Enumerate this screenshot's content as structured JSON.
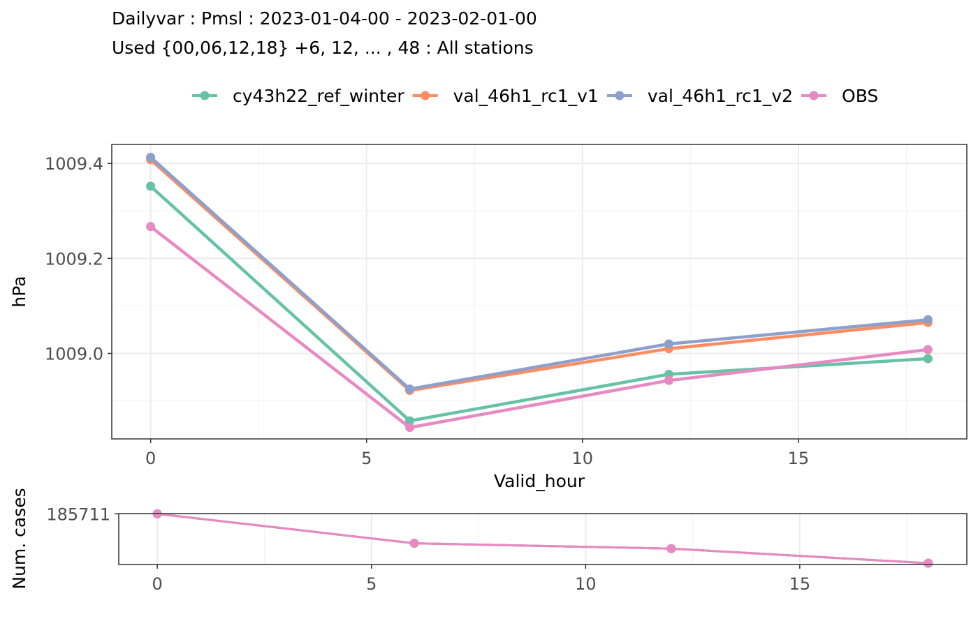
{
  "title_line1": "Dailyvar : Pmsl : 2023-01-04-00 - 2023-02-01-00",
  "title_line2": "Used {00,06,12,18} +6, 12, ... , 48 : All stations",
  "chart_data": [
    {
      "type": "line",
      "panel": "main",
      "xlabel": "Valid_hour",
      "ylabel": "hPa",
      "xlim": [
        -0.9,
        18.9
      ],
      "ylim": [
        1008.82,
        1009.44
      ],
      "x_ticks": [
        0,
        5,
        10,
        15
      ],
      "x_tick_labels": [
        "0",
        "5",
        "10",
        "15"
      ],
      "y_ticks": [
        1009.0,
        1009.2,
        1009.4
      ],
      "y_tick_labels": [
        "1009.0",
        "1009.2",
        "1009.4"
      ],
      "grid": true,
      "legend_position": "top",
      "x": [
        0,
        6,
        12,
        18
      ],
      "series": [
        {
          "name": "cy43h22_ref_winter",
          "color": "#66c2a5",
          "values": [
            1009.352,
            1008.858,
            1008.956,
            1008.989
          ]
        },
        {
          "name": "val_46h1_rc1_v1",
          "color": "#fc8d62",
          "values": [
            1009.408,
            1008.922,
            1009.01,
            1009.065
          ]
        },
        {
          "name": "val_46h1_rc1_v2",
          "color": "#8da0cb",
          "values": [
            1009.413,
            1008.925,
            1009.02,
            1009.071
          ]
        },
        {
          "name": "OBS",
          "color": "#e78ac3",
          "values": [
            1009.267,
            1008.844,
            1008.943,
            1009.008
          ]
        }
      ]
    },
    {
      "type": "line",
      "panel": "cases",
      "xlabel": "",
      "ylabel": "Num. cases",
      "xlim": [
        -0.9,
        18.9
      ],
      "ylim": [
        185520,
        185712
      ],
      "x_ticks": [
        0,
        5,
        10,
        15
      ],
      "x_tick_labels": [
        "0",
        "5",
        "10",
        "15"
      ],
      "y_ticks": [
        185711
      ],
      "y_tick_labels": [
        "185711"
      ],
      "grid": true,
      "x": [
        0,
        6,
        12,
        18
      ],
      "series": [
        {
          "color": "#66c2a5",
          "values": [
            185711,
            185600,
            185580,
            185525
          ]
        },
        {
          "color": "#fc8d62",
          "values": [
            185711,
            185600,
            185580,
            185525
          ]
        },
        {
          "color": "#8da0cb",
          "values": [
            185711,
            185600,
            185580,
            185525
          ]
        },
        {
          "color": "#e78ac3",
          "values": [
            185711,
            185600,
            185580,
            185525
          ]
        }
      ]
    }
  ]
}
